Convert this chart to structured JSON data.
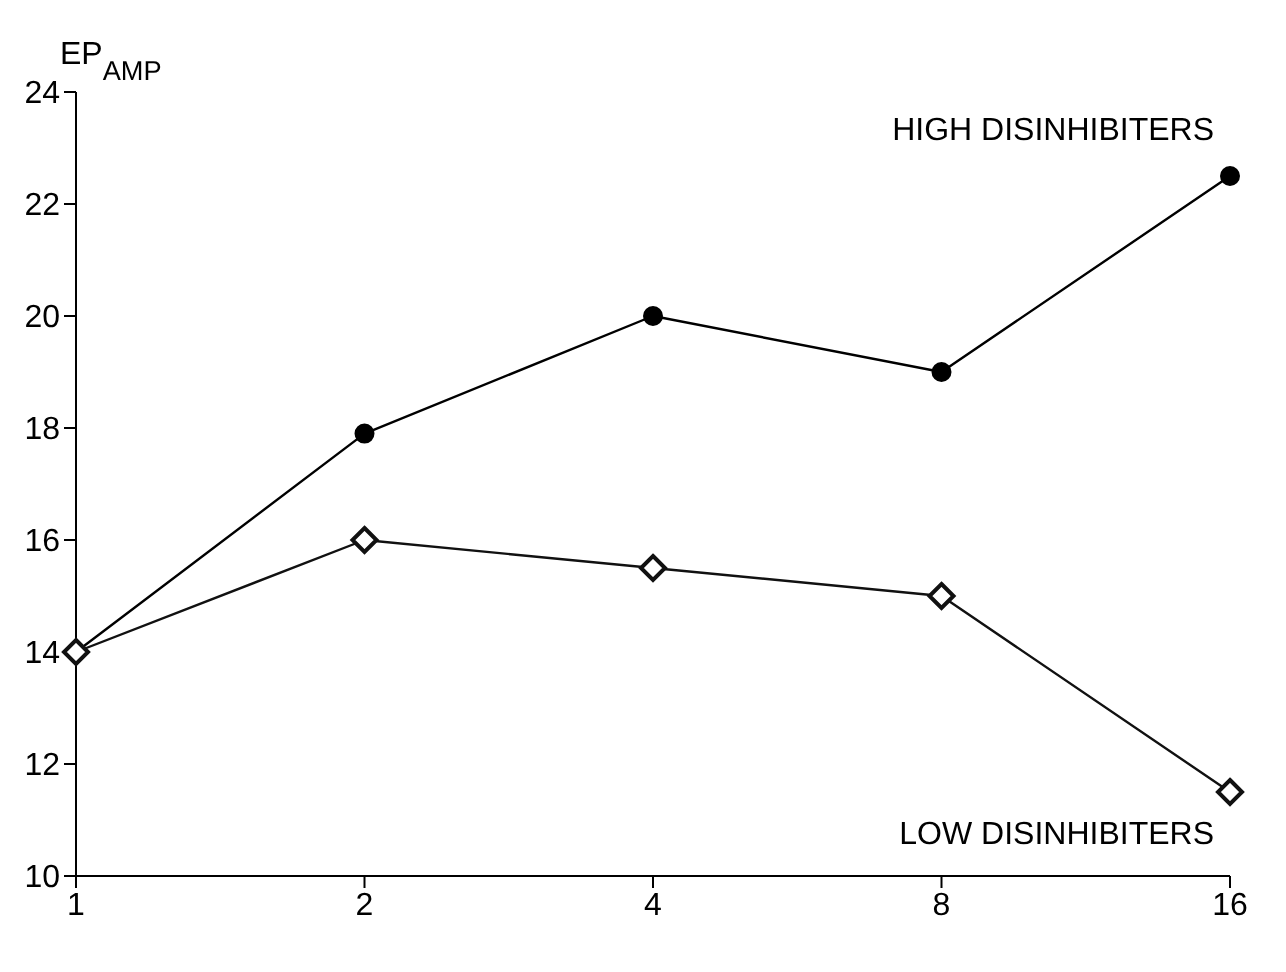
{
  "chart_data": {
    "type": "line",
    "ylabel": "EP$_{AMP}$",
    "log": "x",
    "x": [
      1,
      2,
      4,
      8,
      16
    ],
    "xlim": [
      1,
      16
    ],
    "xticks": [
      1,
      2,
      4,
      8,
      16
    ],
    "ylim": [
      10,
      24
    ],
    "yticks": [
      10,
      12,
      14,
      16,
      18,
      20,
      22,
      24
    ],
    "line_style": "solid",
    "series": [
      {
        "name": "HIGH DISINHIBITERS",
        "color": "#000000",
        "marker": "circle",
        "values": [
          14,
          17.9,
          20,
          19,
          22.5
        ]
      },
      {
        "name": "LOW DISINHIBITERS",
        "color": "#111111",
        "marker": "diamond",
        "values": [
          14,
          16,
          15.5,
          15,
          11.5
        ]
      }
    ]
  }
}
